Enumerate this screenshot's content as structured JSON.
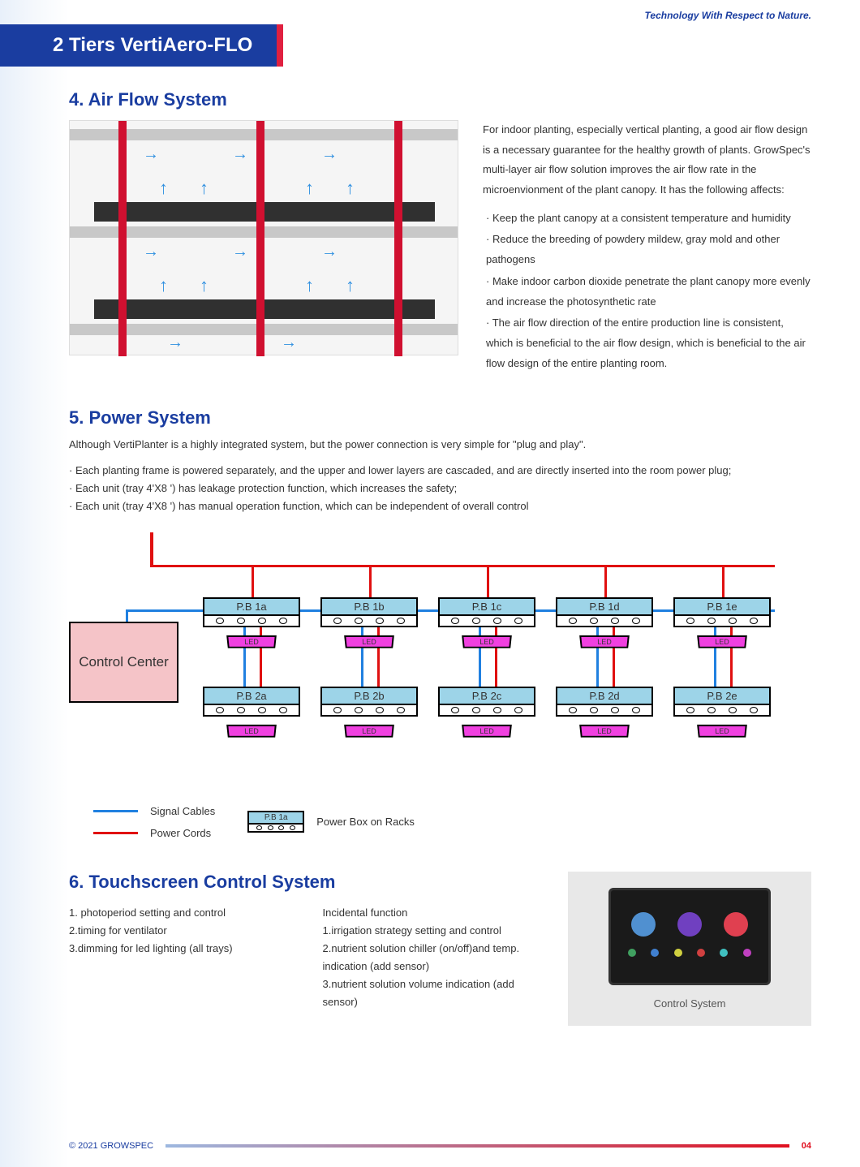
{
  "tagline": "Technology With Respect to Nature.",
  "header": "2 Tiers VertiAero-FLO",
  "colors": {
    "primary_blue": "#1a3da0",
    "accent_red": "#e02040",
    "pb_fill": "#9dd4e8",
    "led_fill": "#f040e0",
    "control_fill": "#f5c4c8",
    "signal_blue": "#2080e0",
    "power_red": "#e01010"
  },
  "section4": {
    "title": "4. Air Flow System",
    "intro": "For indoor planting, especially vertical planting, a good air flow design is a necessary guarantee for the healthy growth of plants. GrowSpec's multi-layer air flow solution improves the air flow rate in the microenvionment of the plant canopy. It has the following affects:",
    "bullets": [
      "Keep the plant canopy at a consistent temperature and humidity",
      "Reduce the breeding of powdery mildew, gray mold and other pathogens",
      "Make indoor carbon dioxide penetrate the plant canopy more evenly and increase the photosynthetic rate",
      "The air flow direction of the entire production line is consistent, which is beneficial to the air flow design, which is beneficial to the air flow design of the entire planting room."
    ]
  },
  "section5": {
    "title": "5. Power System",
    "intro": "Although VertiPlanter is a highly integrated system, but the power connection is very simple for \"plug and play\".",
    "bullets": [
      "Each planting frame is powered separately, and the upper and lower layers are cascaded, and are directly inserted into the room power plug;",
      "Each unit (tray 4'X8 ') has leakage protection function, which increases the safety;",
      "Each unit (tray 4'X8 ') has manual operation function, which can be independent of overall control"
    ],
    "control_center": "Control Center",
    "pb_labels_row1": [
      "P.B 1a",
      "P.B 1b",
      "P.B 1c",
      "P.B 1d",
      "P.B 1e"
    ],
    "pb_labels_row2": [
      "P.B 2a",
      "P.B 2b",
      "P.B 2c",
      "P.B 2d",
      "P.B 2e"
    ],
    "led_label": "LED",
    "legend": {
      "signal": "Signal Cables",
      "power": "Power Cords",
      "pb_sample": "P.B 1a",
      "pb_text": "Power Box on Racks"
    }
  },
  "section6": {
    "title": "6. Touchscreen Control System",
    "col1": [
      "1. photoperiod setting and control",
      "2.timing for ventilator",
      "3.dimming for led lighting (all trays)"
    ],
    "col2_title": "Incidental function",
    "col2": [
      "1.irrigation strategy setting and control",
      "2.nutrient solution chiller (on/off)and temp. indication (add sensor)",
      "3.nutrient solution volume indication (add sensor)"
    ],
    "control_label": "Control System",
    "screen_icon_colors": [
      "#5090d0",
      "#7040c0",
      "#e04050"
    ],
    "screen_dot_colors": [
      "#40a060",
      "#4080d0",
      "#d0d040",
      "#d04040",
      "#40c0c0",
      "#c040c0"
    ]
  },
  "footer": {
    "copyright": "© 2021 GROWSPEC",
    "page": "04"
  }
}
